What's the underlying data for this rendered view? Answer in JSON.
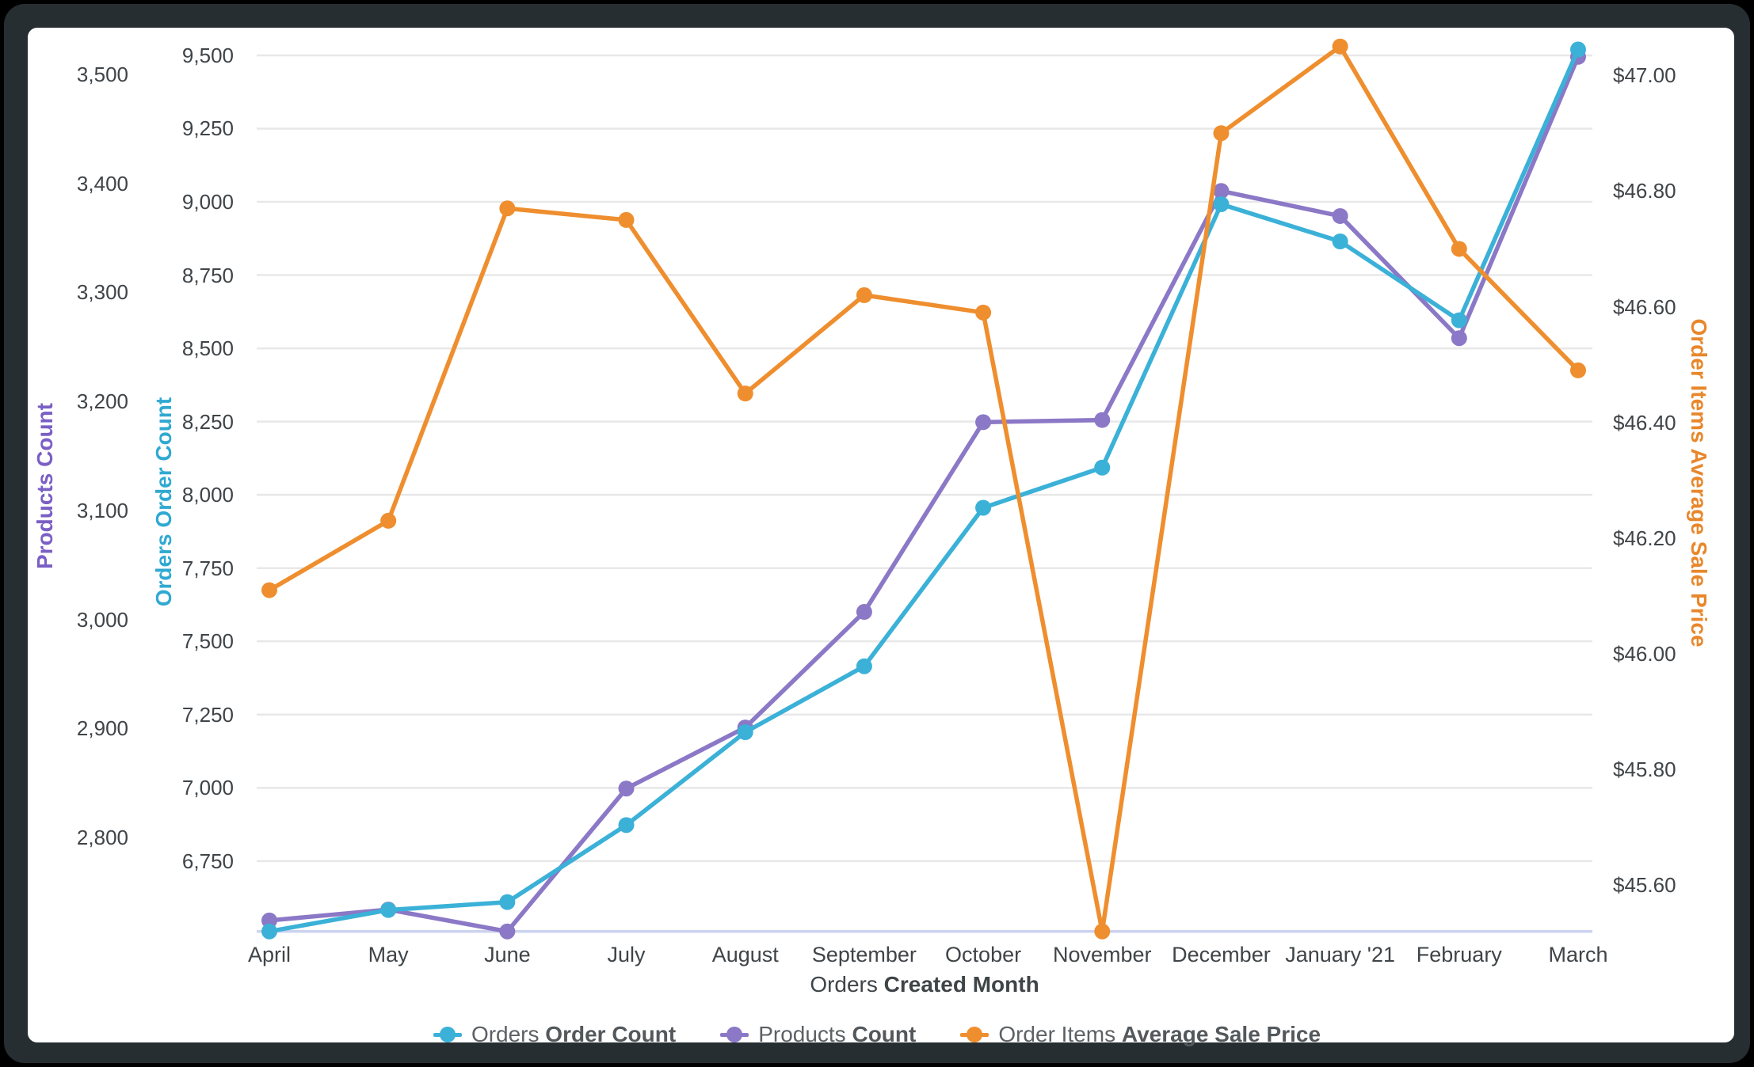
{
  "chart_data": {
    "type": "line",
    "title": "",
    "categories": [
      "April",
      "May",
      "June",
      "July",
      "August",
      "September",
      "October",
      "November",
      "December",
      "January '21",
      "February",
      "March"
    ],
    "x_axis": {
      "label_regular": "Orders",
      "label_bold": "Created Month"
    },
    "axes": {
      "products": {
        "title": "Products Count",
        "title_color": "#7a5fc4",
        "min": 2714,
        "max": 3534,
        "ticks": [
          2800,
          2900,
          3000,
          3100,
          3200,
          3300,
          3400,
          3500
        ],
        "tick_labels": [
          "2,800",
          "2,900",
          "3,000",
          "3,100",
          "3,200",
          "3,300",
          "3,400",
          "3,500"
        ]
      },
      "orders": {
        "title": "Orders Order Count",
        "title_color": "#2fa9d2",
        "min": 6510,
        "max": 9562,
        "ticks": [
          6750,
          7000,
          7250,
          7500,
          7750,
          8000,
          8250,
          8500,
          8750,
          9000,
          9250,
          9500
        ],
        "tick_labels": [
          "6,750",
          "7,000",
          "7,250",
          "7,500",
          "7,750",
          "8,000",
          "8,250",
          "8,500",
          "8,750",
          "9,000",
          "9,250",
          "9,500"
        ]
      },
      "price": {
        "title": "Order Items Average Sale Price",
        "title_color": "#e8872b",
        "min": 45.52,
        "max": 47.066,
        "ticks": [
          45.6,
          45.8,
          46.0,
          46.2,
          46.4,
          46.6,
          46.8,
          47.0
        ],
        "tick_labels": [
          "$45.60",
          "$45.80",
          "$46.00",
          "$46.20",
          "$46.40",
          "$46.60",
          "$46.80",
          "$47.00"
        ]
      }
    },
    "series": [
      {
        "name_regular": "Products",
        "name_bold": "Count",
        "axis": "products",
        "color": "#8b78c6",
        "values": [
          2724,
          2734,
          2714,
          2845,
          2901,
          3007,
          3181,
          3183,
          3393,
          3370,
          3258,
          3516
        ]
      },
      {
        "name_regular": "Orders",
        "name_bold": "Order Count",
        "axis": "orders",
        "color": "#3bb1d8",
        "values": [
          6510,
          6583,
          6610,
          6873,
          7190,
          7415,
          7956,
          8093,
          8992,
          8865,
          8596,
          9520
        ]
      },
      {
        "name_regular": "Order Items",
        "name_bold": "Average Sale Price",
        "axis": "price",
        "color": "#ef8e2e",
        "values": [
          46.11,
          46.23,
          46.77,
          46.75,
          46.45,
          46.62,
          46.59,
          45.52,
          46.9,
          47.05,
          46.7,
          46.49
        ]
      }
    ],
    "legend_order": [
      1,
      0,
      2
    ],
    "grid": {
      "line_color": "#e8e8e8",
      "baseline_color": "#ccd3f0"
    },
    "legend_position": "bottom"
  }
}
